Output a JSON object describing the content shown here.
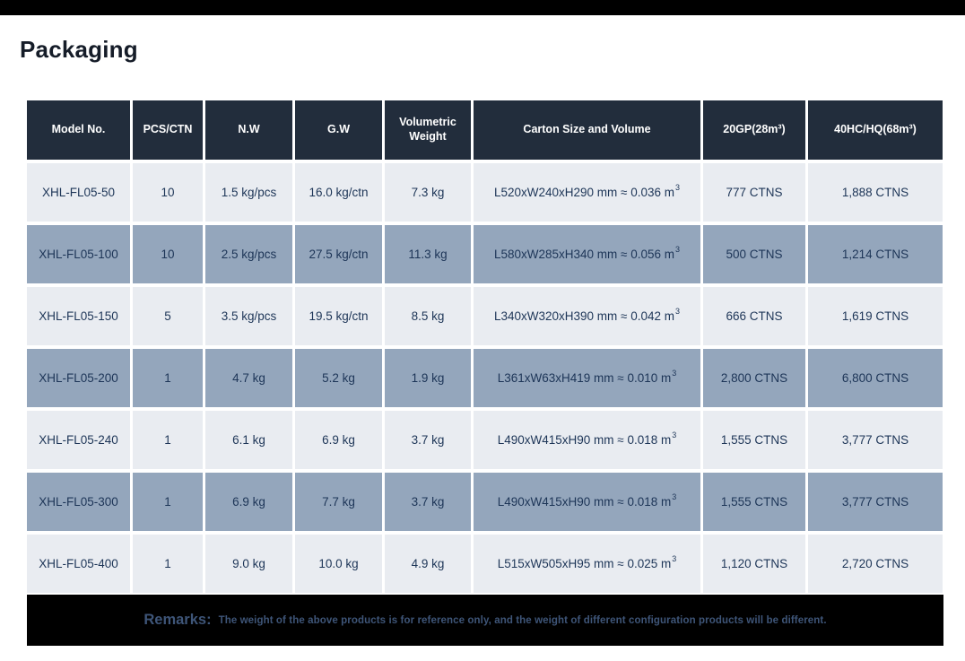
{
  "page": {
    "title": "Packaging"
  },
  "table": {
    "headers": [
      "Model No.",
      "PCS/CTN",
      "N.W",
      "G.W",
      "Volumetric Weight",
      "Carton Size and Volume",
      "20GP(28m³)",
      "40HC/HQ(68m³)"
    ],
    "rows": [
      {
        "model": "XHL-FL05-50",
        "pcs": "10",
        "nw": "1.5 kg/pcs",
        "gw": "16.0 kg/ctn",
        "vw": "7.3 kg",
        "carton": "L520xW240xH290 mm ≈ 0.036 m",
        "carton_sup": "3",
        "gp20": "777 CTNS",
        "hc40": "1,888 CTNS"
      },
      {
        "model": "XHL-FL05-100",
        "pcs": "10",
        "nw": "2.5 kg/pcs",
        "gw": "27.5 kg/ctn",
        "vw": "11.3 kg",
        "carton": "L580xW285xH340 mm ≈ 0.056 m",
        "carton_sup": "3",
        "gp20": "500 CTNS",
        "hc40": "1,214 CTNS"
      },
      {
        "model": "XHL-FL05-150",
        "pcs": "5",
        "nw": "3.5 kg/pcs",
        "gw": "19.5 kg/ctn",
        "vw": "8.5 kg",
        "carton": "L340xW320xH390 mm ≈ 0.042 m",
        "carton_sup": "3",
        "gp20": "666 CTNS",
        "hc40": "1,619 CTNS"
      },
      {
        "model": "XHL-FL05-200",
        "pcs": "1",
        "nw": "4.7 kg",
        "gw": "5.2 kg",
        "vw": "1.9 kg",
        "carton": "L361xW63xH419 mm ≈ 0.010 m",
        "carton_sup": "3",
        "gp20": "2,800 CTNS",
        "hc40": "6,800 CTNS"
      },
      {
        "model": "XHL-FL05-240",
        "pcs": "1",
        "nw": "6.1 kg",
        "gw": "6.9 kg",
        "vw": "3.7 kg",
        "carton": "L490xW415xH90 mm ≈ 0.018 m",
        "carton_sup": "3",
        "gp20": "1,555 CTNS",
        "hc40": "3,777 CTNS"
      },
      {
        "model": "XHL-FL05-300",
        "pcs": "1",
        "nw": "6.9 kg",
        "gw": "7.7 kg",
        "vw": "3.7 kg",
        "carton": "L490xW415xH90 mm ≈ 0.018 m",
        "carton_sup": "3",
        "gp20": "1,555 CTNS",
        "hc40": "3,777 CTNS"
      },
      {
        "model": "XHL-FL05-400",
        "pcs": "1",
        "nw": "9.0 kg",
        "gw": "10.0 kg",
        "vw": "4.9 kg",
        "carton": "L515xW505xH95 mm ≈ 0.025 m",
        "carton_sup": "3",
        "gp20": "1,120 CTNS",
        "hc40": "2,720 CTNS"
      }
    ]
  },
  "remarks": {
    "label": "Remarks:",
    "text": "The weight of the above products is for reference only, and the weight of different configuration products will be different."
  },
  "colors": {
    "top_bar": "#000000",
    "title_text": "#151c28",
    "header_bg": "#222d3c",
    "row_light": "#e9ecf1",
    "row_dark": "#94a6bc",
    "cell_text": "#1d3557",
    "remarks_bg": "#000000",
    "remarks_text": "#3e5578"
  }
}
